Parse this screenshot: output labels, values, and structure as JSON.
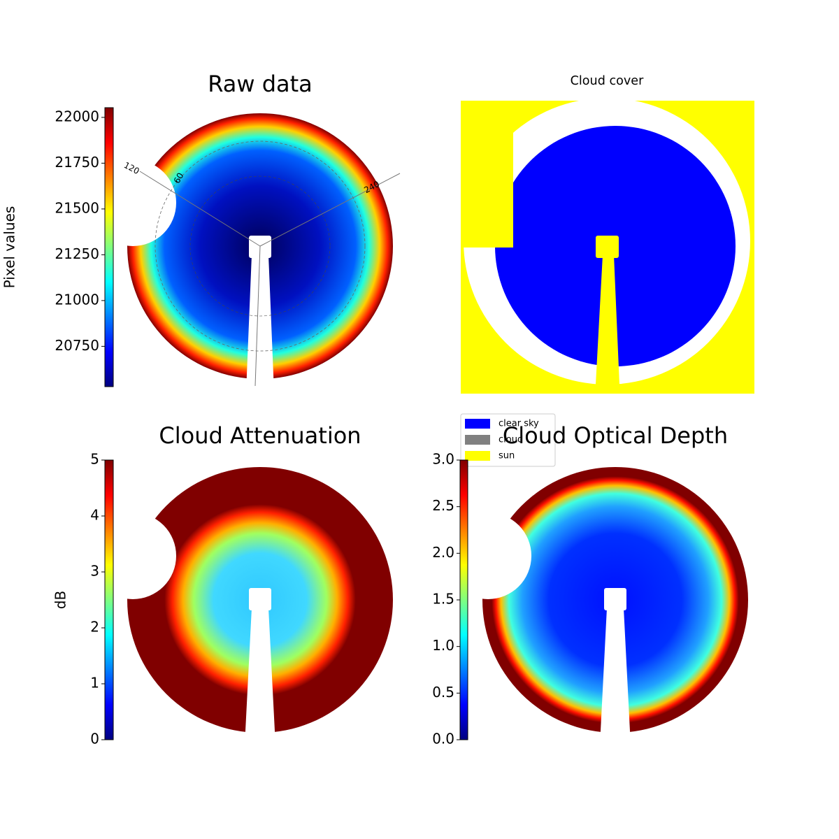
{
  "chart_data": [
    {
      "type": "heatmap",
      "title": "Raw data",
      "colormap": "jet",
      "colorbar": {
        "label": "Pixel values",
        "lim": [
          20530,
          22053
        ],
        "ticks": [
          20750,
          21000,
          21250,
          21500,
          21750,
          22000
        ]
      },
      "annotations": [
        "120",
        "60",
        "240"
      ]
    },
    {
      "type": "categorical",
      "title": "Cloud cover",
      "legend": {
        "categories": [
          "clear sky",
          "cloud",
          "sun"
        ],
        "colors": [
          "#0000ff",
          "#808080",
          "#ffff00"
        ]
      }
    },
    {
      "type": "heatmap",
      "title": "Cloud Attenuation",
      "colormap": "jet",
      "colorbar": {
        "label": "dB",
        "lim": [
          0,
          5
        ],
        "ticks": [
          0,
          1,
          2,
          3,
          4,
          5
        ]
      }
    },
    {
      "type": "heatmap",
      "title": "Cloud Optical Depth",
      "colormap": "jet",
      "colorbar": {
        "lim": [
          0,
          3
        ],
        "ticks": [
          {
            "value": 0,
            "label": "0.0"
          },
          {
            "value": 0.5,
            "label": "0.5"
          },
          {
            "value": 1,
            "label": "1.0"
          },
          {
            "value": 1.5,
            "label": "1.5"
          },
          {
            "value": 2,
            "label": "2.0"
          },
          {
            "value": 2.5,
            "label": "2.5"
          },
          {
            "value": 3,
            "label": "3.0"
          }
        ]
      }
    }
  ]
}
